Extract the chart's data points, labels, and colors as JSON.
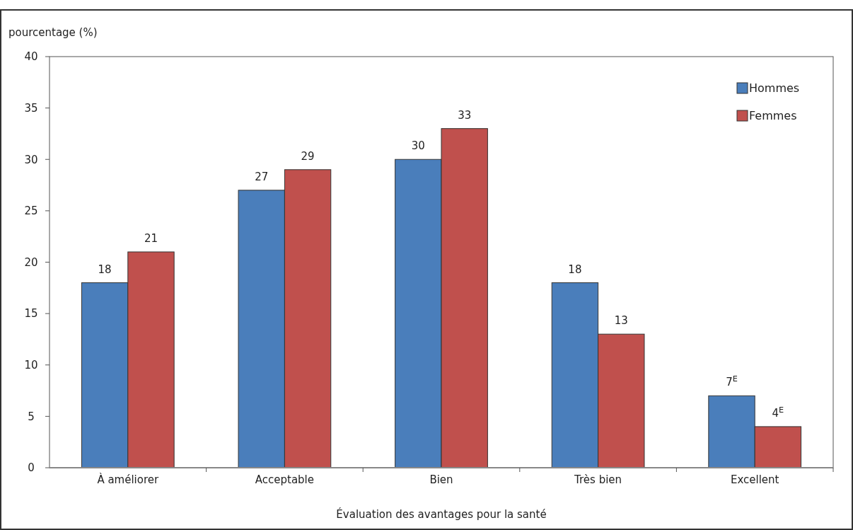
{
  "chart_data": {
    "type": "bar",
    "ylabel": "pourcentage (%)",
    "xlabel": "Évaluation des avantages pour la santé",
    "categories": [
      "À améliorer",
      "Acceptable",
      "Bien",
      "Très bien",
      "Excellent"
    ],
    "series": [
      {
        "name": "Hommes",
        "color": "#4a7ebb",
        "values": [
          18,
          27,
          30,
          18,
          7
        ],
        "value_labels": [
          "18",
          "27",
          "30",
          "18",
          "7$^{E}$"
        ]
      },
      {
        "name": "Femmes",
        "color": "#c0504d",
        "values": [
          21,
          29,
          33,
          13,
          4
        ],
        "value_labels": [
          "21",
          "29",
          "33",
          "13",
          "4$^{E}$"
        ]
      }
    ],
    "ylim": [
      0,
      40
    ],
    "yticks": [
      0,
      5,
      10,
      15,
      20,
      25,
      30,
      35,
      40
    ],
    "grid": false,
    "legend": "top right"
  }
}
